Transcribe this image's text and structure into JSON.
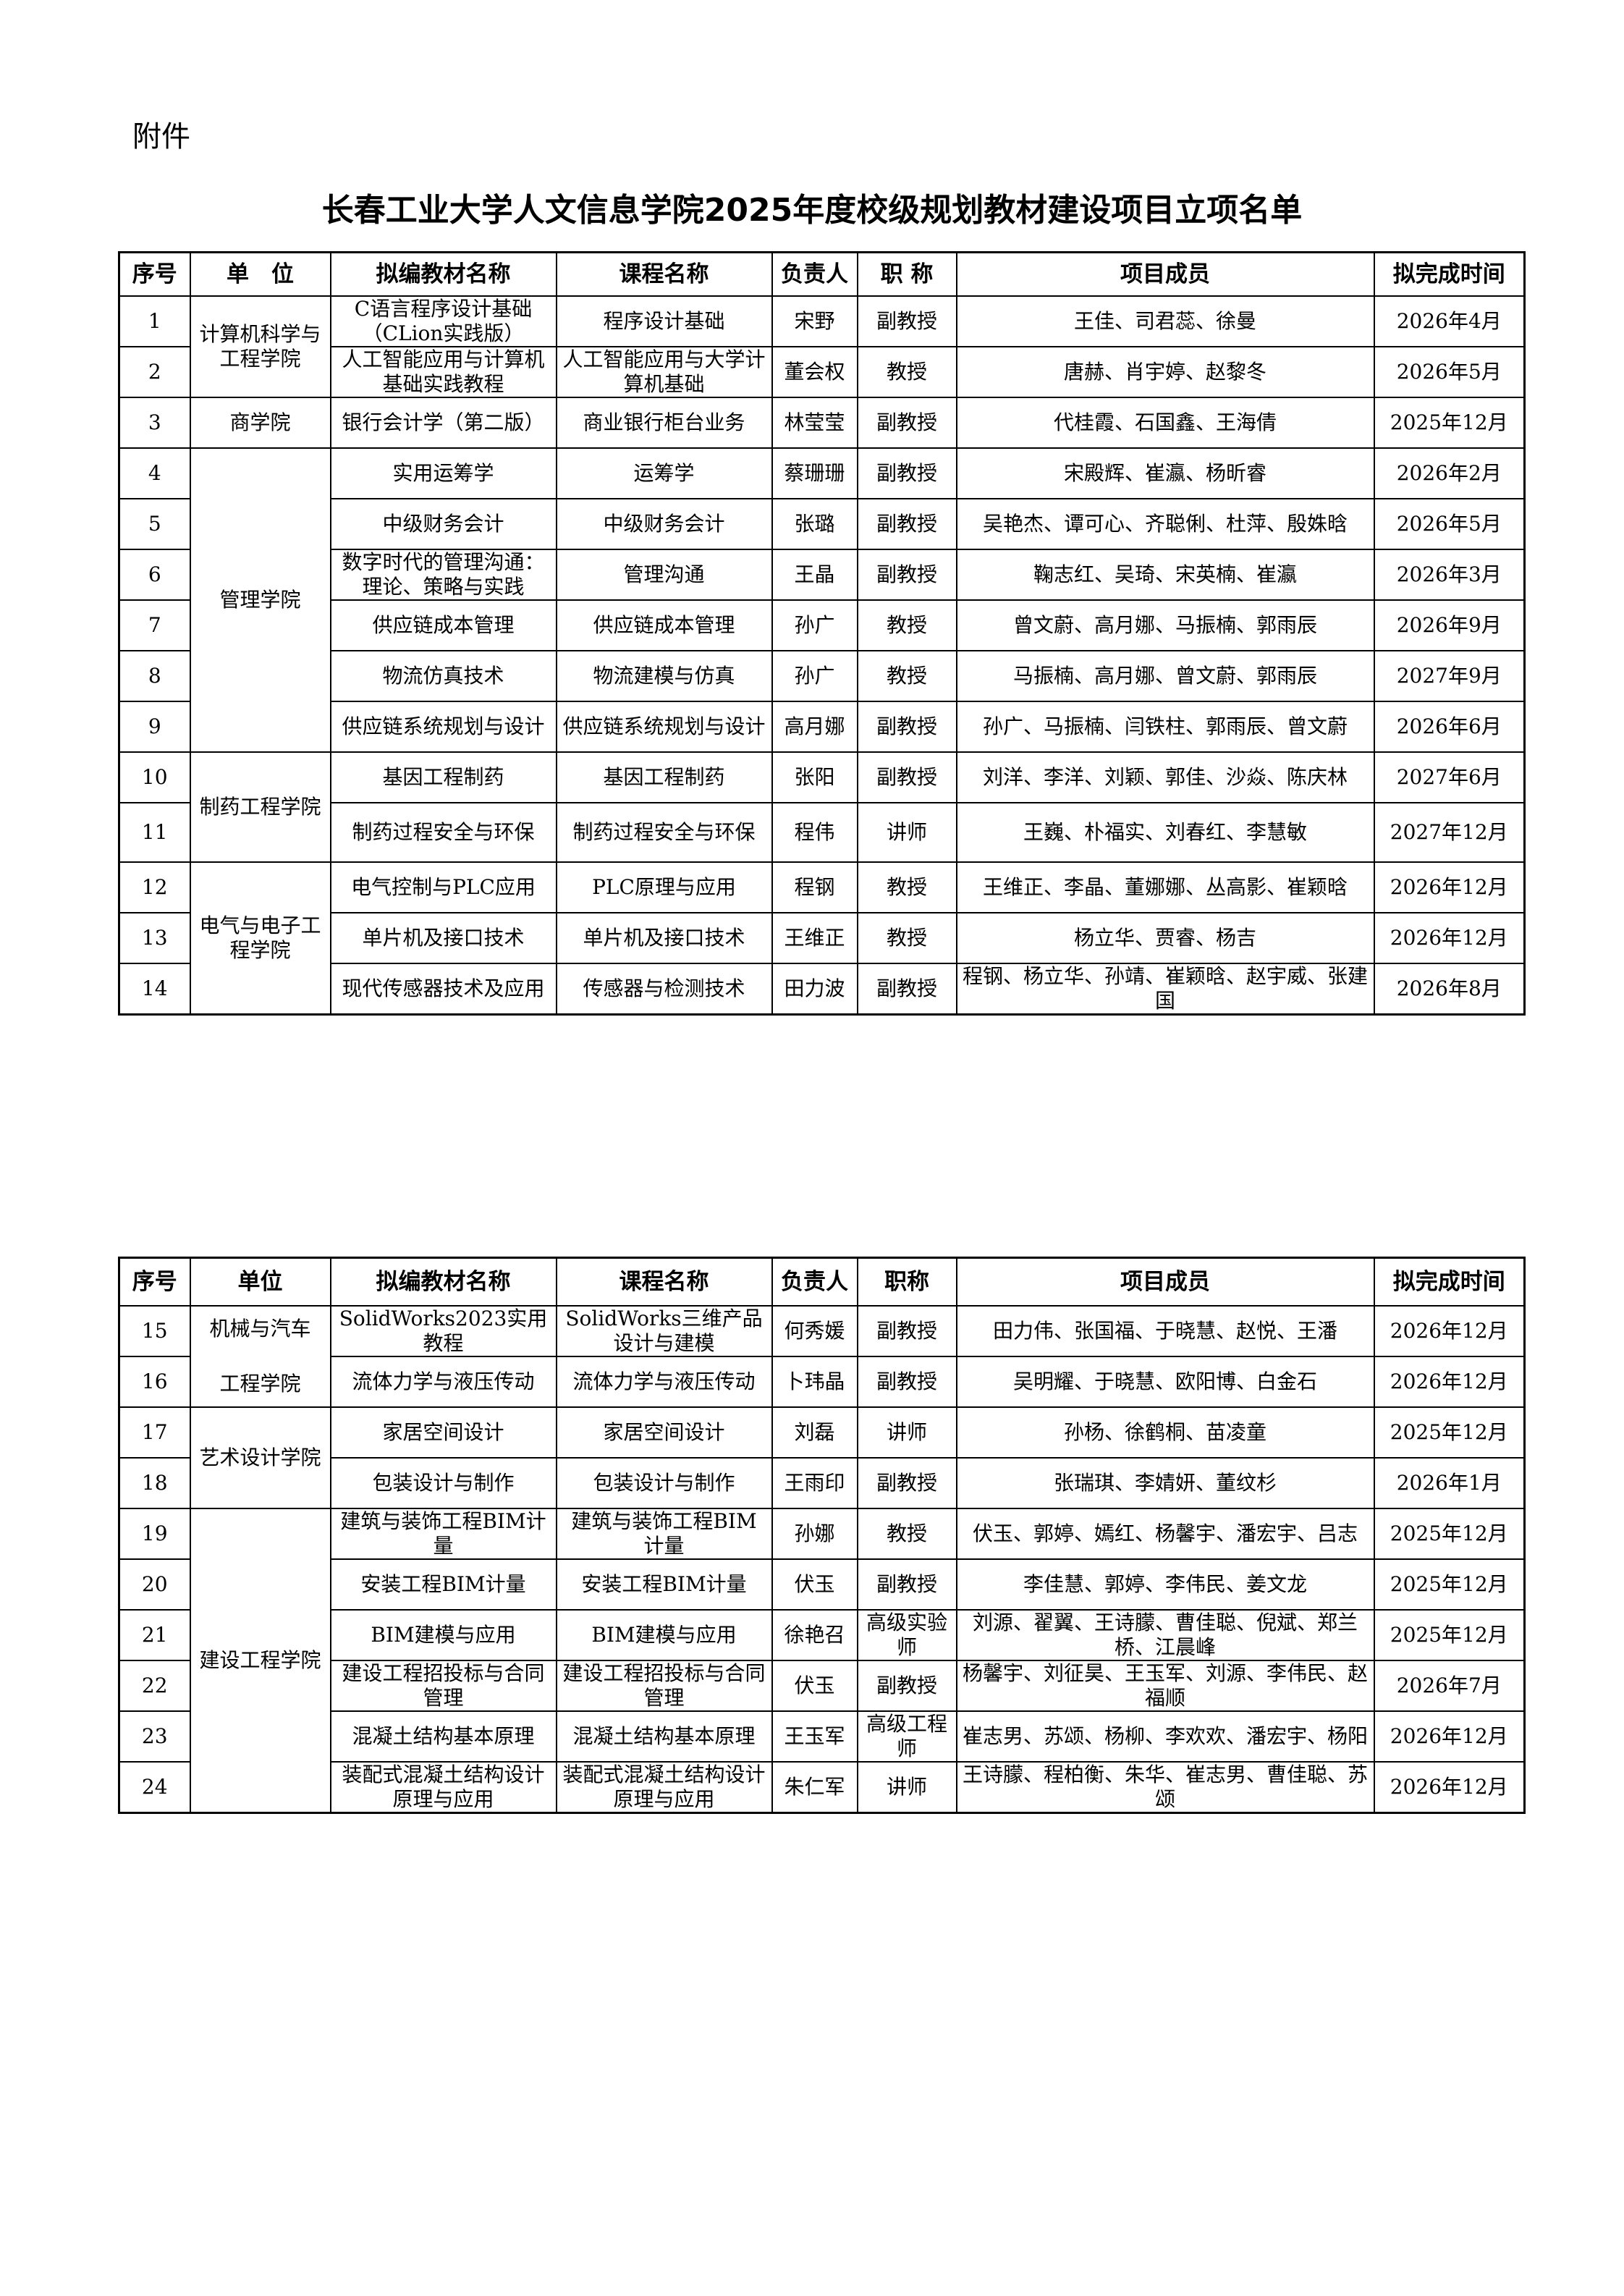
{
  "attachment_label": "附件",
  "title": "长春工业大学人文信息学院2025年度校级规划教材建设项目立项名单",
  "headers_1": [
    "序号",
    "单　位",
    "拟编教材名称",
    "课程名称",
    "负责人",
    "职 称",
    "项目成员",
    "拟完成时间"
  ],
  "headers_2": [
    "序号",
    "单位",
    "拟编教材名称",
    "课程名称",
    "负责人",
    "职称",
    "项目成员",
    "拟完成时间"
  ],
  "table_1": [
    {
      "unit": "计算机科学与工程学院",
      "rows": [
        [
          "1",
          "C语言程序设计基础（CLion实践版）",
          "程序设计基础",
          "宋野",
          "副教授",
          "王佳、司君蕊、徐曼",
          "2026年4月"
        ],
        [
          "2",
          "人工智能应用与计算机基础实践教程",
          "人工智能应用与大学计算机基础",
          "董会权",
          "教授",
          "唐赫、肖宇婷、赵黎冬",
          "2026年5月"
        ]
      ]
    },
    {
      "unit": "商学院",
      "rows": [
        [
          "3",
          "银行会计学（第二版）",
          "商业银行柜台业务",
          "林莹莹",
          "副教授",
          "代桂霞、石国鑫、王海倩",
          "2025年12月"
        ]
      ]
    },
    {
      "unit": "管理学院",
      "rows": [
        [
          "4",
          "实用运筹学",
          "运筹学",
          "蔡珊珊",
          "副教授",
          "宋殿辉、崔瀛、杨昕睿",
          "2026年2月"
        ],
        [
          "5",
          "中级财务会计",
          "中级财务会计",
          "张璐",
          "副教授",
          "吴艳杰、谭可心、齐聪俐、杜萍、殷姝晗",
          "2026年5月"
        ],
        [
          "6",
          "数字时代的管理沟通：理论、策略与实践",
          "管理沟通",
          "王晶",
          "副教授",
          "鞠志红、吴琦、宋英楠、崔瀛",
          "2026年3月"
        ],
        [
          "7",
          "供应链成本管理",
          "供应链成本管理",
          "孙广",
          "教授",
          "曾文蔚、高月娜、马振楠、郭雨辰",
          "2026年9月"
        ],
        [
          "8",
          "物流仿真技术",
          "物流建模与仿真",
          "孙广",
          "教授",
          "马振楠、高月娜、曾文蔚、郭雨辰",
          "2027年9月"
        ],
        [
          "9",
          "供应链系统规划与设计",
          "供应链系统规划与设计",
          "高月娜",
          "副教授",
          "孙广、马振楠、闫铁柱、郭雨辰、曾文蔚",
          "2026年6月"
        ]
      ]
    },
    {
      "unit": "制药工程学院",
      "rows": [
        [
          "10",
          "基因工程制药",
          "基因工程制药",
          "张阳",
          "副教授",
          "刘洋、李洋、刘颖、郭佳、沙焱、陈庆林",
          "2027年6月"
        ],
        [
          "11",
          "制药过程安全与环保",
          "制药过程安全与环保",
          "程伟",
          "讲师",
          "王巍、朴福实、刘春红、李慧敏",
          "2027年12月"
        ]
      ]
    },
    {
      "unit": "电气与电子工程学院",
      "rows": [
        [
          "12",
          "电气控制与PLC应用",
          "PLC原理与应用",
          "程钢",
          "教授",
          "王维正、李晶、董娜娜、丛高影、崔颖晗",
          "2026年12月"
        ],
        [
          "13",
          "单片机及接口技术",
          "单片机及接口技术",
          "王维正",
          "教授",
          "杨立华、贾睿、杨吉",
          "2026年12月"
        ],
        [
          "14",
          "现代传感器技术及应用",
          "传感器与检测技术",
          "田力波",
          "副教授",
          "程钢、杨立华、孙靖、崔颖晗、赵宇威、张建国",
          "2026年8月"
        ]
      ]
    }
  ],
  "table_2": [
    {
      "unit": "机械与汽车工程学院",
      "unit_lines": [
        "机械与汽车",
        "工程学院"
      ],
      "rows": [
        [
          "15",
          "SolidWorks2023实用教程",
          "SolidWorks三维产品设计与建模",
          "何秀媛",
          "副教授",
          "田力伟、张国福、于晓慧、赵悦、王潘",
          "2026年12月"
        ],
        [
          "16",
          "流体力学与液压传动",
          "流体力学与液压传动",
          "卜玮晶",
          "副教授",
          "吴明耀、于晓慧、欧阳博、白金石",
          "2026年12月"
        ]
      ]
    },
    {
      "unit": "艺术设计学院",
      "rows": [
        [
          "17",
          "家居空间设计",
          "家居空间设计",
          "刘磊",
          "讲师",
          "孙杨、徐鹤桐、苗凌童",
          "2025年12月"
        ],
        [
          "18",
          "包装设计与制作",
          "包装设计与制作",
          "王雨印",
          "副教授",
          "张瑞琪、李婧妍、董纹杉",
          "2026年1月"
        ]
      ]
    },
    {
      "unit": "建设工程学院",
      "rows": [
        [
          "19",
          "建筑与装饰工程BIM计量",
          "建筑与装饰工程BIM计量",
          "孙娜",
          "教授",
          "伏玉、郭婷、嫣红、杨馨宇、潘宏宇、吕志",
          "2025年12月"
        ],
        [
          "20",
          "安装工程BIM计量",
          "安装工程BIM计量",
          "伏玉",
          "副教授",
          "李佳慧、郭婷、李伟民、姜文龙",
          "2025年12月"
        ],
        [
          "21",
          "BIM建模与应用",
          "BIM建模与应用",
          "徐艳召",
          "高级实验师",
          "刘源、翟翼、王诗朦、曹佳聪、倪斌、郑兰桥、江晨峰",
          "2025年12月"
        ],
        [
          "22",
          "建设工程招投标与合同管理",
          "建设工程招投标与合同管理",
          "伏玉",
          "副教授",
          "杨馨宇、刘征昊、王玉军、刘源、李伟民、赵福顺",
          "2026年7月"
        ],
        [
          "23",
          "混凝土结构基本原理",
          "混凝土结构基本原理",
          "王玉军",
          "高级工程师",
          "崔志男、苏颂、杨柳、李欢欢、潘宏宇、杨阳",
          "2026年12月"
        ],
        [
          "24",
          "装配式混凝土结构设计原理与应用",
          "装配式混凝土结构设计原理与应用",
          "朱仁军",
          "讲师",
          "王诗朦、程柏衡、朱华、崔志男、曹佳聪、苏颂",
          "2026年12月"
        ]
      ]
    }
  ]
}
